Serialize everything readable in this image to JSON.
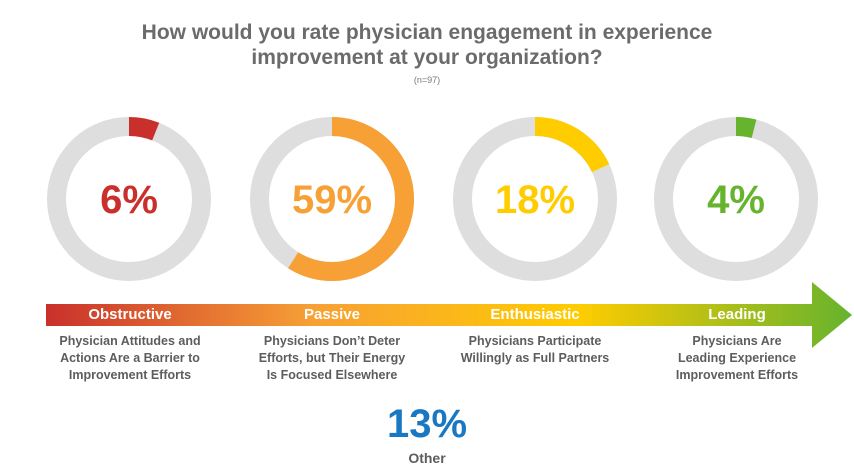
{
  "title_line1": "How would you rate physician engagement in experience",
  "title_line2": "improvement at your organization?",
  "subtitle": "(n=97)",
  "colors": {
    "track": "#dedede",
    "obstructive": "#c9302c",
    "passive": "#f7a035",
    "enthusiastic": "#ffcc00",
    "leading": "#66b32e",
    "other": "#1a78c2"
  },
  "chart_data": {
    "type": "donut",
    "series": [
      {
        "name": "Obstructive",
        "value": 6,
        "label": "6%",
        "description": [
          "Physician Attitudes and",
          "Actions Are a Barrier to",
          "Improvement Efforts"
        ]
      },
      {
        "name": "Passive",
        "value": 59,
        "label": "59%",
        "description": [
          "Physicians Don’t Deter",
          "Efforts, but Their Energy",
          "Is Focused Elsewhere"
        ]
      },
      {
        "name": "Enthusiastic",
        "value": 18,
        "label": "18%",
        "description": [
          "Physicians Participate",
          "Willingly as Full Partners"
        ]
      },
      {
        "name": "Leading",
        "value": 4,
        "label": "4%",
        "description": [
          "Physicians Are",
          "Leading Experience",
          "Improvement Efforts"
        ]
      }
    ],
    "other": {
      "value": 13,
      "label": "13%",
      "name": "Other"
    }
  }
}
